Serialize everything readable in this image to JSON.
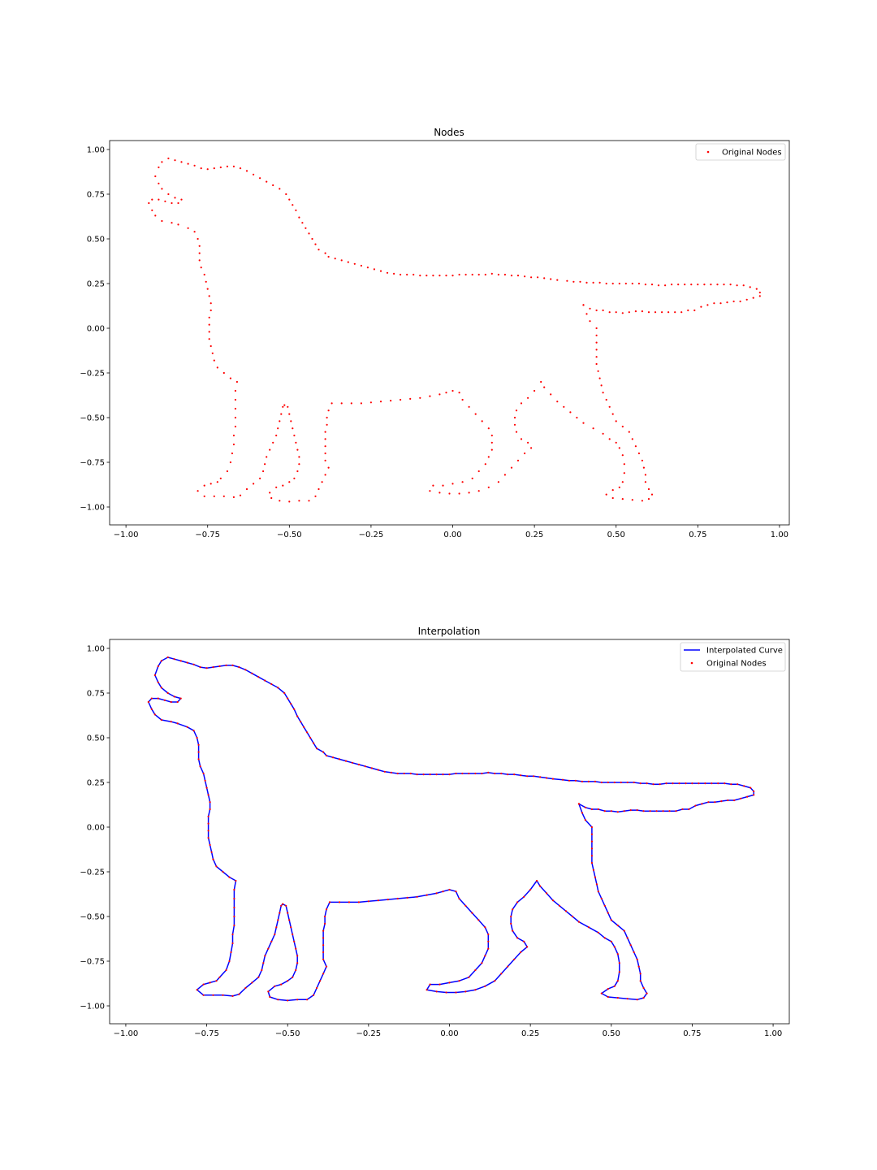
{
  "chart_data": [
    {
      "type": "scatter",
      "title": "Nodes",
      "xlabel": "",
      "ylabel": "",
      "xlim": [
        -1.05,
        1.03
      ],
      "ylim": [
        -1.1,
        1.05
      ],
      "xticks": [
        -1.0,
        -0.75,
        -0.5,
        -0.25,
        0.0,
        0.25,
        0.5,
        0.75,
        1.0
      ],
      "xtick_labels": [
        "−1.00",
        "−0.75",
        "−0.50",
        "−0.25",
        "0.00",
        "0.25",
        "0.50",
        "0.75",
        "1.00"
      ],
      "yticks": [
        -1.0,
        -0.75,
        -0.5,
        -0.25,
        0.0,
        0.25,
        0.5,
        0.75,
        1.0
      ],
      "ytick_labels": [
        "−1.00",
        "−0.75",
        "−0.50",
        "−0.25",
        "0.00",
        "0.25",
        "0.50",
        "0.75",
        "1.00"
      ],
      "grid": false,
      "legend_position": "top-right",
      "series": [
        {
          "name": "Original Nodes",
          "kind": "scatter",
          "color": "#ff0000"
        }
      ]
    },
    {
      "type": "line",
      "title": "Interpolation",
      "xlabel": "",
      "ylabel": "",
      "xlim": [
        -1.05,
        1.05
      ],
      "ylim": [
        -1.1,
        1.05
      ],
      "xticks": [
        -1.0,
        -0.75,
        -0.5,
        -0.25,
        0.0,
        0.25,
        0.5,
        0.75,
        1.0
      ],
      "xtick_labels": [
        "−1.00",
        "−0.75",
        "−0.50",
        "−0.25",
        "0.00",
        "0.25",
        "0.50",
        "0.75",
        "1.00"
      ],
      "yticks": [
        -1.0,
        -0.75,
        -0.5,
        -0.25,
        0.0,
        0.25,
        0.5,
        0.75,
        1.0
      ],
      "ytick_labels": [
        "−1.00",
        "−0.75",
        "−0.50",
        "−0.25",
        "0.00",
        "0.25",
        "0.50",
        "0.75",
        "1.00"
      ],
      "grid": false,
      "legend_position": "top-right",
      "series": [
        {
          "name": "Interpolated Curve",
          "kind": "line",
          "color": "#0000ff"
        },
        {
          "name": "Original Nodes",
          "kind": "scatter",
          "color": "#ff0000"
        }
      ]
    }
  ],
  "outline_nodes": [
    [
      0.4,
      0.13
    ],
    [
      0.42,
      0.11
    ],
    [
      0.44,
      0.1
    ],
    [
      0.46,
      0.1
    ],
    [
      0.48,
      0.09
    ],
    [
      0.5,
      0.09
    ],
    [
      0.52,
      0.085
    ],
    [
      0.54,
      0.09
    ],
    [
      0.56,
      0.095
    ],
    [
      0.58,
      0.095
    ],
    [
      0.6,
      0.09
    ],
    [
      0.62,
      0.09
    ],
    [
      0.64,
      0.09
    ],
    [
      0.66,
      0.09
    ],
    [
      0.68,
      0.09
    ],
    [
      0.7,
      0.09
    ],
    [
      0.72,
      0.1
    ],
    [
      0.74,
      0.1
    ],
    [
      0.76,
      0.12
    ],
    [
      0.78,
      0.13
    ],
    [
      0.8,
      0.14
    ],
    [
      0.82,
      0.14
    ],
    [
      0.84,
      0.145
    ],
    [
      0.86,
      0.15
    ],
    [
      0.88,
      0.15
    ],
    [
      0.9,
      0.16
    ],
    [
      0.92,
      0.17
    ],
    [
      0.94,
      0.18
    ],
    [
      0.94,
      0.2
    ],
    [
      0.93,
      0.22
    ],
    [
      0.91,
      0.23
    ],
    [
      0.89,
      0.24
    ],
    [
      0.87,
      0.24
    ],
    [
      0.85,
      0.245
    ],
    [
      0.83,
      0.245
    ],
    [
      0.81,
      0.245
    ],
    [
      0.79,
      0.245
    ],
    [
      0.77,
      0.245
    ],
    [
      0.75,
      0.245
    ],
    [
      0.73,
      0.245
    ],
    [
      0.71,
      0.245
    ],
    [
      0.69,
      0.245
    ],
    [
      0.67,
      0.245
    ],
    [
      0.65,
      0.24
    ],
    [
      0.63,
      0.24
    ],
    [
      0.61,
      0.245
    ],
    [
      0.59,
      0.245
    ],
    [
      0.57,
      0.25
    ],
    [
      0.55,
      0.25
    ],
    [
      0.53,
      0.25
    ],
    [
      0.51,
      0.25
    ],
    [
      0.49,
      0.25
    ],
    [
      0.47,
      0.25
    ],
    [
      0.45,
      0.255
    ],
    [
      0.43,
      0.255
    ],
    [
      0.41,
      0.255
    ],
    [
      0.39,
      0.26
    ],
    [
      0.37,
      0.26
    ],
    [
      0.35,
      0.265
    ],
    [
      0.32,
      0.27
    ],
    [
      0.3,
      0.275
    ],
    [
      0.28,
      0.28
    ],
    [
      0.26,
      0.285
    ],
    [
      0.24,
      0.285
    ],
    [
      0.22,
      0.29
    ],
    [
      0.2,
      0.295
    ],
    [
      0.18,
      0.295
    ],
    [
      0.16,
      0.3
    ],
    [
      0.14,
      0.3
    ],
    [
      0.12,
      0.305
    ],
    [
      0.1,
      0.3
    ],
    [
      0.08,
      0.3
    ],
    [
      0.06,
      0.3
    ],
    [
      0.04,
      0.3
    ],
    [
      0.02,
      0.3
    ],
    [
      0.0,
      0.295
    ],
    [
      -0.02,
      0.295
    ],
    [
      -0.04,
      0.295
    ],
    [
      -0.06,
      0.295
    ],
    [
      -0.08,
      0.295
    ],
    [
      -0.1,
      0.295
    ],
    [
      -0.12,
      0.3
    ],
    [
      -0.14,
      0.3
    ],
    [
      -0.16,
      0.3
    ],
    [
      -0.18,
      0.305
    ],
    [
      -0.2,
      0.31
    ],
    [
      -0.22,
      0.32
    ],
    [
      -0.24,
      0.33
    ],
    [
      -0.26,
      0.34
    ],
    [
      -0.28,
      0.35
    ],
    [
      -0.3,
      0.36
    ],
    [
      -0.32,
      0.37
    ],
    [
      -0.34,
      0.38
    ],
    [
      -0.36,
      0.39
    ],
    [
      -0.38,
      0.4
    ],
    [
      -0.39,
      0.42
    ],
    [
      -0.41,
      0.44
    ],
    [
      -0.42,
      0.47
    ],
    [
      -0.43,
      0.5
    ],
    [
      -0.44,
      0.53
    ],
    [
      -0.45,
      0.56
    ],
    [
      -0.46,
      0.59
    ],
    [
      -0.47,
      0.62
    ],
    [
      -0.48,
      0.66
    ],
    [
      -0.49,
      0.69
    ],
    [
      -0.5,
      0.72
    ],
    [
      -0.51,
      0.75
    ],
    [
      -0.53,
      0.78
    ],
    [
      -0.55,
      0.8
    ],
    [
      -0.57,
      0.82
    ],
    [
      -0.59,
      0.84
    ],
    [
      -0.61,
      0.86
    ],
    [
      -0.63,
      0.88
    ],
    [
      -0.65,
      0.895
    ],
    [
      -0.67,
      0.905
    ],
    [
      -0.69,
      0.905
    ],
    [
      -0.71,
      0.9
    ],
    [
      -0.73,
      0.895
    ],
    [
      -0.75,
      0.89
    ],
    [
      -0.77,
      0.895
    ],
    [
      -0.79,
      0.91
    ],
    [
      -0.81,
      0.92
    ],
    [
      -0.83,
      0.93
    ],
    [
      -0.85,
      0.94
    ],
    [
      -0.87,
      0.95
    ],
    [
      -0.89,
      0.93
    ],
    [
      -0.9,
      0.9
    ],
    [
      -0.91,
      0.85
    ],
    [
      -0.9,
      0.81
    ],
    [
      -0.89,
      0.78
    ],
    [
      -0.87,
      0.75
    ],
    [
      -0.85,
      0.73
    ],
    [
      -0.83,
      0.72
    ],
    [
      -0.84,
      0.7
    ],
    [
      -0.86,
      0.7
    ],
    [
      -0.88,
      0.71
    ],
    [
      -0.9,
      0.72
    ],
    [
      -0.92,
      0.72
    ],
    [
      -0.93,
      0.7
    ],
    [
      -0.92,
      0.66
    ],
    [
      -0.91,
      0.63
    ],
    [
      -0.89,
      0.6
    ],
    [
      -0.86,
      0.59
    ],
    [
      -0.84,
      0.58
    ],
    [
      -0.81,
      0.56
    ],
    [
      -0.79,
      0.54
    ],
    [
      -0.78,
      0.5
    ],
    [
      -0.775,
      0.46
    ],
    [
      -0.775,
      0.42
    ],
    [
      -0.775,
      0.38
    ],
    [
      -0.77,
      0.34
    ],
    [
      -0.76,
      0.3
    ],
    [
      -0.755,
      0.26
    ],
    [
      -0.75,
      0.22
    ],
    [
      -0.745,
      0.18
    ],
    [
      -0.74,
      0.14
    ],
    [
      -0.74,
      0.1
    ],
    [
      -0.745,
      0.06
    ],
    [
      -0.745,
      0.02
    ],
    [
      -0.745,
      -0.02
    ],
    [
      -0.745,
      -0.06
    ],
    [
      -0.74,
      -0.1
    ],
    [
      -0.735,
      -0.14
    ],
    [
      -0.73,
      -0.18
    ],
    [
      -0.72,
      -0.22
    ],
    [
      -0.7,
      -0.25
    ],
    [
      -0.68,
      -0.28
    ],
    [
      -0.66,
      -0.3
    ],
    [
      -0.665,
      -0.35
    ],
    [
      -0.665,
      -0.4
    ],
    [
      -0.665,
      -0.45
    ],
    [
      -0.665,
      -0.5
    ],
    [
      -0.665,
      -0.55
    ],
    [
      -0.67,
      -0.6
    ],
    [
      -0.67,
      -0.65
    ],
    [
      -0.675,
      -0.7
    ],
    [
      -0.68,
      -0.75
    ],
    [
      -0.69,
      -0.8
    ],
    [
      -0.71,
      -0.84
    ],
    [
      -0.72,
      -0.86
    ],
    [
      -0.74,
      -0.87
    ],
    [
      -0.76,
      -0.88
    ],
    [
      -0.78,
      -0.91
    ],
    [
      -0.76,
      -0.94
    ],
    [
      -0.73,
      -0.94
    ],
    [
      -0.7,
      -0.94
    ],
    [
      -0.67,
      -0.945
    ],
    [
      -0.65,
      -0.935
    ],
    [
      -0.63,
      -0.9
    ],
    [
      -0.61,
      -0.87
    ],
    [
      -0.59,
      -0.84
    ],
    [
      -0.58,
      -0.8
    ],
    [
      -0.575,
      -0.76
    ],
    [
      -0.57,
      -0.72
    ],
    [
      -0.56,
      -0.68
    ],
    [
      -0.55,
      -0.64
    ],
    [
      -0.54,
      -0.6
    ],
    [
      -0.535,
      -0.56
    ],
    [
      -0.53,
      -0.52
    ],
    [
      -0.525,
      -0.48
    ],
    [
      -0.52,
      -0.44
    ],
    [
      -0.515,
      -0.43
    ],
    [
      -0.505,
      -0.44
    ],
    [
      -0.5,
      -0.48
    ],
    [
      -0.495,
      -0.52
    ],
    [
      -0.49,
      -0.56
    ],
    [
      -0.485,
      -0.6
    ],
    [
      -0.48,
      -0.64
    ],
    [
      -0.475,
      -0.68
    ],
    [
      -0.47,
      -0.72
    ],
    [
      -0.47,
      -0.76
    ],
    [
      -0.475,
      -0.8
    ],
    [
      -0.485,
      -0.84
    ],
    [
      -0.5,
      -0.86
    ],
    [
      -0.52,
      -0.88
    ],
    [
      -0.54,
      -0.89
    ],
    [
      -0.56,
      -0.92
    ],
    [
      -0.555,
      -0.95
    ],
    [
      -0.53,
      -0.965
    ],
    [
      -0.5,
      -0.97
    ],
    [
      -0.47,
      -0.965
    ],
    [
      -0.44,
      -0.965
    ],
    [
      -0.42,
      -0.94
    ],
    [
      -0.41,
      -0.9
    ],
    [
      -0.4,
      -0.86
    ],
    [
      -0.39,
      -0.82
    ],
    [
      -0.38,
      -0.78
    ],
    [
      -0.39,
      -0.74
    ],
    [
      -0.39,
      -0.7
    ],
    [
      -0.39,
      -0.66
    ],
    [
      -0.39,
      -0.62
    ],
    [
      -0.39,
      -0.58
    ],
    [
      -0.385,
      -0.54
    ],
    [
      -0.385,
      -0.5
    ],
    [
      -0.38,
      -0.46
    ],
    [
      -0.37,
      -0.42
    ],
    [
      -0.34,
      -0.42
    ],
    [
      -0.31,
      -0.42
    ],
    [
      -0.28,
      -0.42
    ],
    [
      -0.25,
      -0.415
    ],
    [
      -0.22,
      -0.41
    ],
    [
      -0.19,
      -0.405
    ],
    [
      -0.16,
      -0.4
    ],
    [
      -0.13,
      -0.395
    ],
    [
      -0.1,
      -0.39
    ],
    [
      -0.07,
      -0.38
    ],
    [
      -0.04,
      -0.37
    ],
    [
      -0.02,
      -0.36
    ],
    [
      0.0,
      -0.35
    ],
    [
      0.02,
      -0.36
    ],
    [
      0.03,
      -0.4
    ],
    [
      0.05,
      -0.44
    ],
    [
      0.07,
      -0.48
    ],
    [
      0.09,
      -0.52
    ],
    [
      0.11,
      -0.56
    ],
    [
      0.12,
      -0.6
    ],
    [
      0.12,
      -0.64
    ],
    [
      0.12,
      -0.68
    ],
    [
      0.11,
      -0.72
    ],
    [
      0.1,
      -0.76
    ],
    [
      0.08,
      -0.8
    ],
    [
      0.06,
      -0.84
    ],
    [
      0.03,
      -0.86
    ],
    [
      0.0,
      -0.87
    ],
    [
      -0.03,
      -0.88
    ],
    [
      -0.06,
      -0.88
    ],
    [
      -0.07,
      -0.91
    ],
    [
      -0.04,
      -0.92
    ],
    [
      -0.01,
      -0.925
    ],
    [
      0.02,
      -0.925
    ],
    [
      0.05,
      -0.92
    ],
    [
      0.08,
      -0.91
    ],
    [
      0.11,
      -0.89
    ],
    [
      0.14,
      -0.86
    ],
    [
      0.16,
      -0.82
    ],
    [
      0.18,
      -0.78
    ],
    [
      0.2,
      -0.74
    ],
    [
      0.22,
      -0.7
    ],
    [
      0.24,
      -0.67
    ],
    [
      0.23,
      -0.64
    ],
    [
      0.21,
      -0.62
    ],
    [
      0.195,
      -0.58
    ],
    [
      0.19,
      -0.54
    ],
    [
      0.19,
      -0.5
    ],
    [
      0.195,
      -0.46
    ],
    [
      0.21,
      -0.42
    ],
    [
      0.23,
      -0.39
    ],
    [
      0.25,
      -0.35
    ],
    [
      0.27,
      -0.3
    ],
    [
      0.28,
      -0.33
    ],
    [
      0.3,
      -0.37
    ],
    [
      0.32,
      -0.41
    ],
    [
      0.34,
      -0.44
    ],
    [
      0.36,
      -0.47
    ],
    [
      0.38,
      -0.5
    ],
    [
      0.4,
      -0.53
    ],
    [
      0.43,
      -0.56
    ],
    [
      0.46,
      -0.59
    ],
    [
      0.48,
      -0.62
    ],
    [
      0.5,
      -0.64
    ],
    [
      0.51,
      -0.67
    ],
    [
      0.52,
      -0.71
    ],
    [
      0.525,
      -0.76
    ],
    [
      0.525,
      -0.81
    ],
    [
      0.52,
      -0.86
    ],
    [
      0.51,
      -0.89
    ],
    [
      0.49,
      -0.905
    ],
    [
      0.47,
      -0.93
    ],
    [
      0.49,
      -0.95
    ],
    [
      0.52,
      -0.955
    ],
    [
      0.55,
      -0.96
    ],
    [
      0.58,
      -0.965
    ],
    [
      0.6,
      -0.955
    ],
    [
      0.61,
      -0.93
    ],
    [
      0.6,
      -0.9
    ],
    [
      0.59,
      -0.86
    ],
    [
      0.59,
      -0.82
    ],
    [
      0.585,
      -0.78
    ],
    [
      0.58,
      -0.74
    ],
    [
      0.57,
      -0.7
    ],
    [
      0.56,
      -0.66
    ],
    [
      0.55,
      -0.62
    ],
    [
      0.54,
      -0.58
    ],
    [
      0.52,
      -0.55
    ],
    [
      0.5,
      -0.52
    ],
    [
      0.49,
      -0.48
    ],
    [
      0.48,
      -0.44
    ],
    [
      0.47,
      -0.4
    ],
    [
      0.46,
      -0.36
    ],
    [
      0.455,
      -0.32
    ],
    [
      0.45,
      -0.28
    ],
    [
      0.445,
      -0.24
    ],
    [
      0.44,
      -0.2
    ],
    [
      0.44,
      -0.16
    ],
    [
      0.44,
      -0.12
    ],
    [
      0.44,
      -0.08
    ],
    [
      0.44,
      -0.04
    ],
    [
      0.44,
      0.0
    ],
    [
      0.42,
      0.04
    ],
    [
      0.41,
      0.08
    ],
    [
      0.4,
      0.13
    ]
  ]
}
